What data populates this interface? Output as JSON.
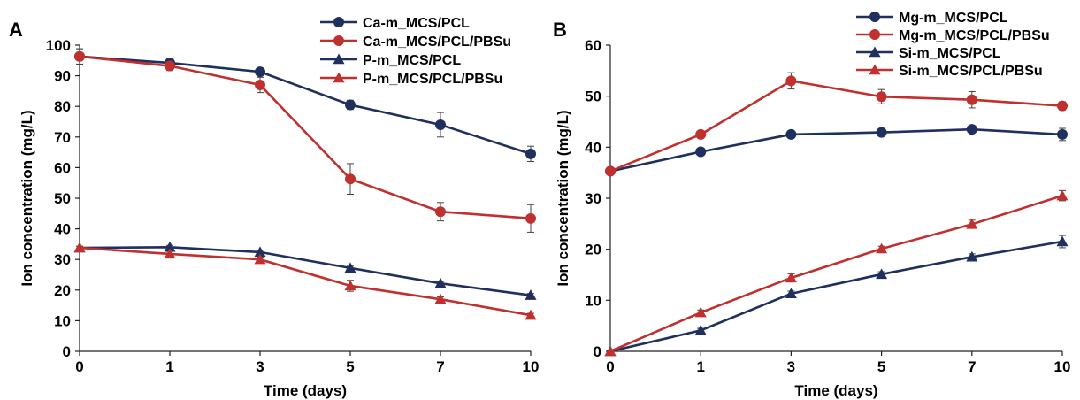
{
  "chart_data": [
    {
      "panel_label": "A",
      "type": "line",
      "x": [
        0,
        1,
        3,
        5,
        7,
        10
      ],
      "xlabel": "Time (days)",
      "ylabel": "Ion concentration (mg/L)",
      "ylim": [
        0,
        100
      ],
      "yticks": [
        0,
        10,
        20,
        30,
        40,
        50,
        60,
        70,
        80,
        90,
        100
      ],
      "grid": false,
      "legend_position": "top-right",
      "series": [
        {
          "name": "Ca-m_MCS/PCL",
          "marker": "circle",
          "color": "#1f2f5e",
          "values": [
            96.3,
            94.2,
            91.3,
            80.5,
            74.0,
            64.5
          ],
          "errors": [
            2.5,
            1.5,
            1.0,
            1.5,
            4.0,
            2.5
          ]
        },
        {
          "name": "Ca-m_MCS/PCL/PBSu",
          "marker": "circle",
          "color": "#c0302e",
          "values": [
            96.3,
            93.2,
            87.0,
            56.3,
            45.6,
            43.4
          ],
          "errors": [
            2.5,
            1.5,
            2.5,
            5.0,
            3.0,
            4.5
          ]
        },
        {
          "name": "P-m_MCS/PCL",
          "marker": "triangle",
          "color": "#1f2f5e",
          "values": [
            33.8,
            34.0,
            32.4,
            27.2,
            22.2,
            18.3
          ],
          "errors": [
            0.5,
            0.6,
            0.6,
            0.6,
            0.6,
            0.6
          ]
        },
        {
          "name": "P-m_MCS/PCL/PBSu",
          "marker": "triangle",
          "color": "#c0302e",
          "values": [
            33.8,
            31.8,
            30.0,
            21.4,
            17.0,
            11.8
          ],
          "errors": [
            0.5,
            0.8,
            0.8,
            1.8,
            0.8,
            0.6
          ]
        }
      ]
    },
    {
      "panel_label": "B",
      "type": "line",
      "x": [
        0,
        1,
        3,
        5,
        7,
        10
      ],
      "xlabel": "Time (days)",
      "ylabel": "Ion concentration (mg/L)",
      "ylim": [
        0,
        60
      ],
      "yticks": [
        0,
        10,
        20,
        30,
        40,
        50,
        60
      ],
      "grid": false,
      "legend_position": "top-right",
      "series": [
        {
          "name": "Mg-m_MCS/PCL",
          "marker": "circle",
          "color": "#1f2f5e",
          "values": [
            35.3,
            39.1,
            42.5,
            42.9,
            43.5,
            42.5
          ],
          "errors": [
            0.4,
            0.6,
            0.5,
            0.4,
            0.5,
            1.2
          ]
        },
        {
          "name": "Mg-m_MCS/PCL/PBSu",
          "marker": "circle",
          "color": "#c0302e",
          "values": [
            35.3,
            42.5,
            53.0,
            49.9,
            49.3,
            48.1
          ],
          "errors": [
            0.4,
            0.7,
            1.6,
            1.4,
            1.6,
            0.8
          ]
        },
        {
          "name": "Si-m_MCS/PCL",
          "marker": "triangle",
          "color": "#1f2f5e",
          "values": [
            0.0,
            4.1,
            11.3,
            15.1,
            18.5,
            21.5
          ],
          "errors": [
            0.2,
            0.4,
            0.5,
            0.5,
            0.6,
            1.2
          ]
        },
        {
          "name": "Si-m_MCS/PCL/PBSu",
          "marker": "triangle",
          "color": "#c0302e",
          "values": [
            0.0,
            7.6,
            14.4,
            20.1,
            24.9,
            30.5
          ],
          "errors": [
            0.2,
            0.5,
            0.8,
            0.5,
            0.8,
            1.0
          ]
        }
      ]
    }
  ]
}
